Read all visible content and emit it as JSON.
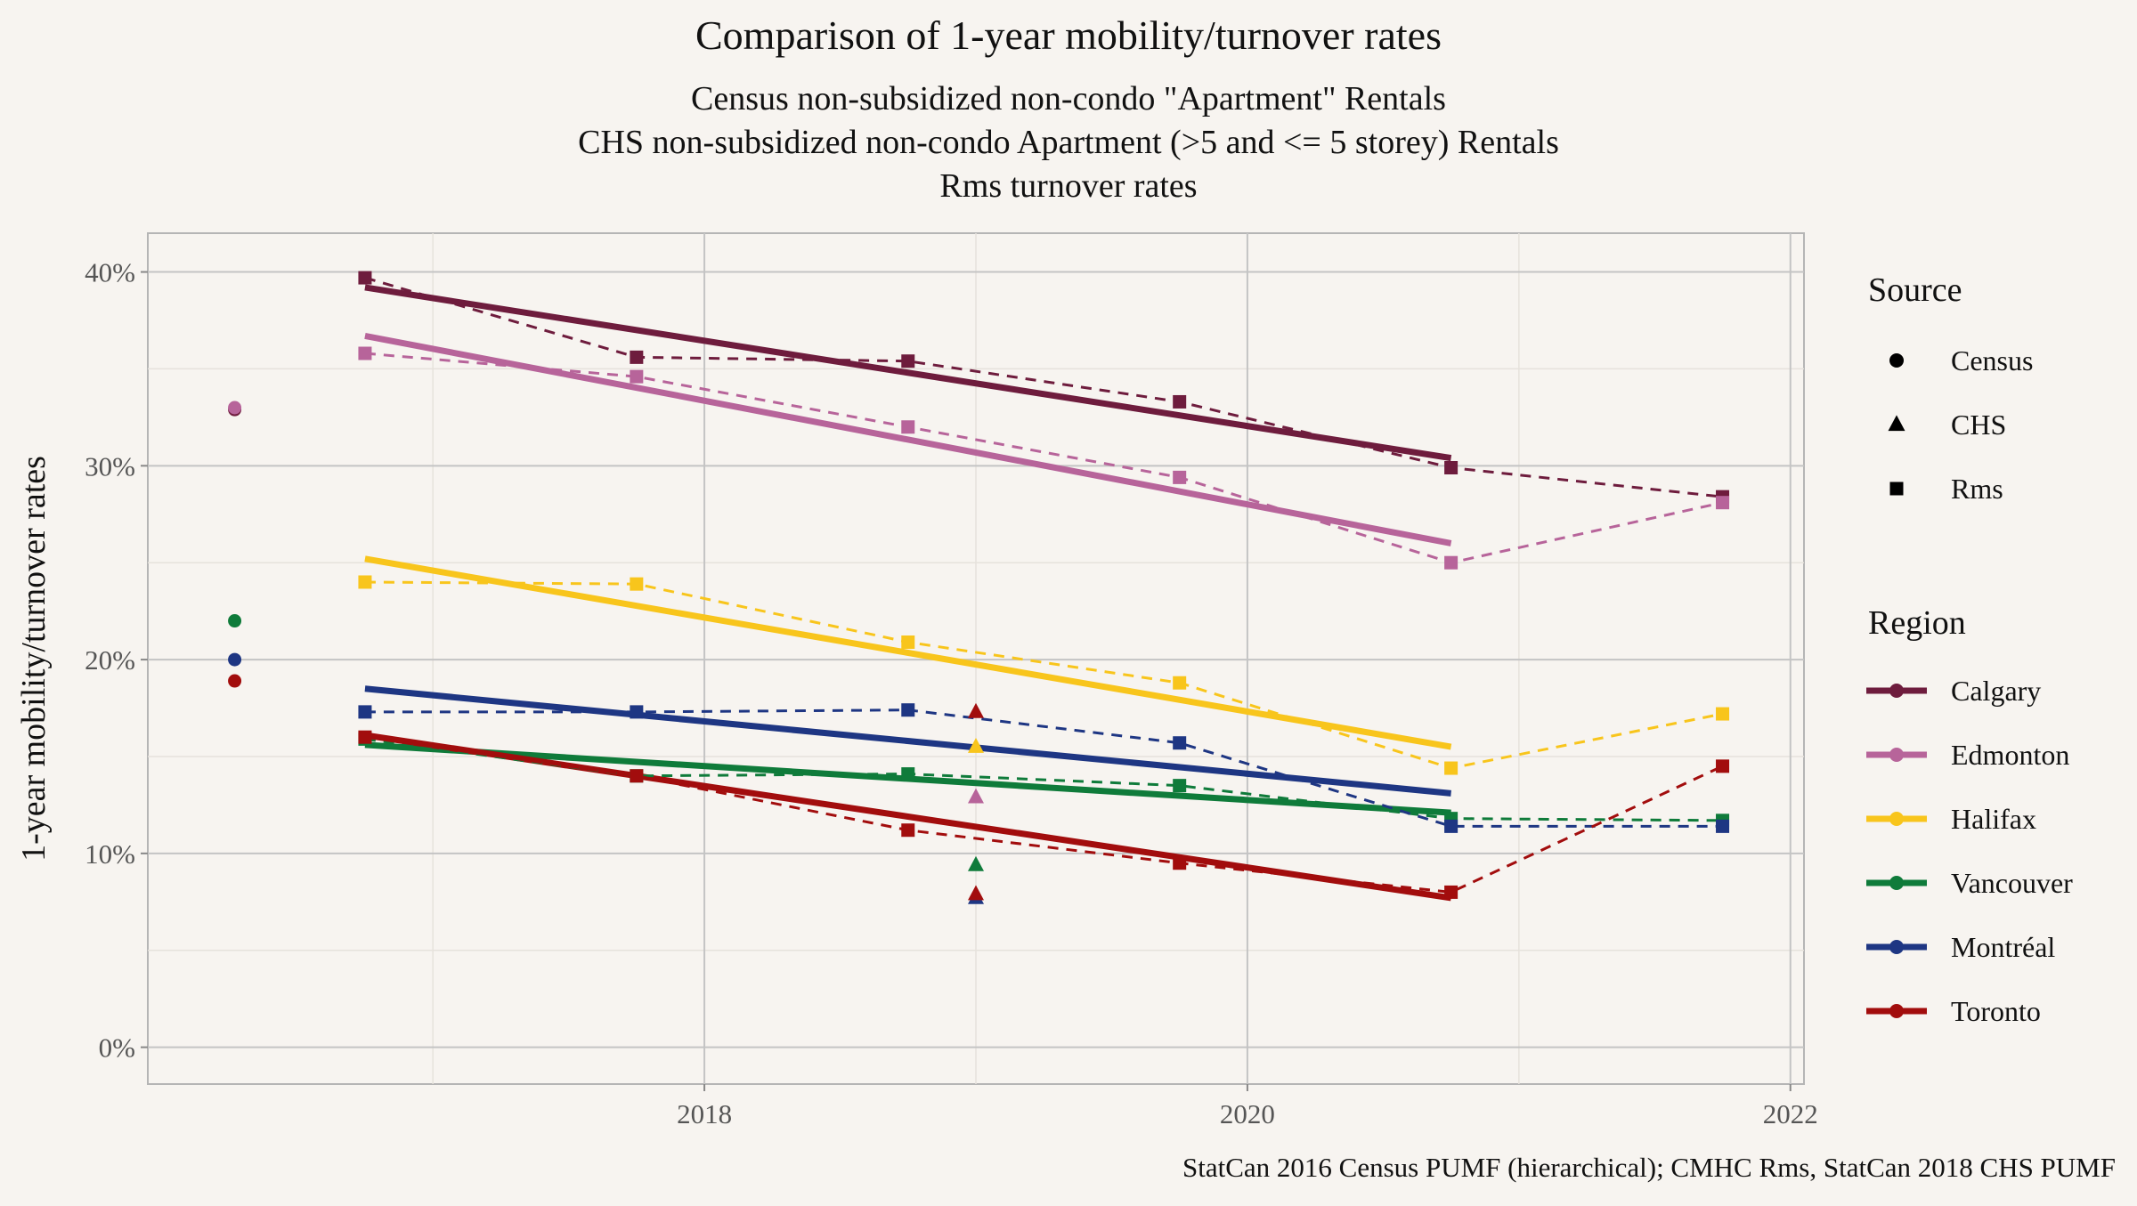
{
  "chart_data": {
    "type": "line",
    "title": "Comparison of 1-year mobility/turnover rates",
    "subtitle_lines": [
      "Census non-subsidized non-condo \"Apartment\" Rentals",
      "CHS non-subsidized non-condo Apartment (>5 and <= 5 storey) Rentals",
      "Rms turnover rates"
    ],
    "ylabel": "1-year mobility/turnover rates",
    "caption": "StatCan 2016 Census PUMF (hierarchical); CMHC Rms, StatCan 2018 CHS PUMF",
    "xlim": [
      2015.95,
      2022.05
    ],
    "ylim": [
      -0.019,
      0.42
    ],
    "x_ticks": [
      2018,
      2020,
      2022
    ],
    "x_tick_labels": [
      "2018",
      "2020",
      "2022"
    ],
    "y_ticks": [
      0,
      0.1,
      0.2,
      0.3,
      0.4
    ],
    "y_tick_labels": [
      "0%",
      "10%",
      "20%",
      "30%",
      "40%"
    ],
    "grid": true,
    "legend_position": "right",
    "legend_source_title": "Source",
    "legend_source": [
      {
        "label": "Census",
        "shape": "circle"
      },
      {
        "label": "CHS",
        "shape": "triangle"
      },
      {
        "label": "Rms",
        "shape": "square"
      }
    ],
    "legend_region_title": "Region",
    "series": [
      {
        "name": "Calgary",
        "color": "#6e1c3d",
        "census": [
          [
            2016.27,
            0.329
          ]
        ],
        "chs": [],
        "rms": [
          [
            2016.75,
            0.397
          ],
          [
            2017.75,
            0.356
          ],
          [
            2018.75,
            0.354
          ],
          [
            2019.75,
            0.333
          ],
          [
            2020.75,
            0.299
          ],
          [
            2021.75,
            0.284
          ]
        ],
        "trend": [
          [
            2016.75,
            0.392
          ],
          [
            2020.75,
            0.304
          ]
        ]
      },
      {
        "name": "Edmonton",
        "color": "#b7649a",
        "census": [
          [
            2016.27,
            0.33
          ]
        ],
        "chs": [
          [
            2019.0,
            0.129
          ]
        ],
        "rms": [
          [
            2016.75,
            0.358
          ],
          [
            2017.75,
            0.346
          ],
          [
            2018.75,
            0.32
          ],
          [
            2019.75,
            0.294
          ],
          [
            2020.75,
            0.25
          ],
          [
            2021.75,
            0.281
          ]
        ],
        "trend": [
          [
            2016.75,
            0.367
          ],
          [
            2020.75,
            0.26
          ]
        ]
      },
      {
        "name": "Halifax",
        "color": "#f8c51c",
        "census": [],
        "chs": [
          [
            2019.0,
            0.155
          ]
        ],
        "rms": [
          [
            2016.75,
            0.24
          ],
          [
            2017.75,
            0.239
          ],
          [
            2018.75,
            0.209
          ],
          [
            2019.75,
            0.188
          ],
          [
            2020.75,
            0.144
          ],
          [
            2021.75,
            0.172
          ]
        ],
        "trend": [
          [
            2016.75,
            0.252
          ],
          [
            2020.75,
            0.155
          ]
        ]
      },
      {
        "name": "Vancouver",
        "color": "#0f7b3a",
        "census": [
          [
            2016.27,
            0.22
          ]
        ],
        "chs": [
          [
            2019.0,
            0.094
          ]
        ],
        "rms": [
          [
            2016.75,
            0.159
          ],
          [
            2017.75,
            0.14
          ],
          [
            2018.75,
            0.141
          ],
          [
            2019.75,
            0.135
          ],
          [
            2020.75,
            0.118
          ],
          [
            2021.75,
            0.117
          ]
        ],
        "trend": [
          [
            2016.75,
            0.156
          ],
          [
            2020.75,
            0.121
          ]
        ]
      },
      {
        "name": "Montréal",
        "color": "#1e3683",
        "census": [
          [
            2016.27,
            0.2
          ]
        ],
        "chs": [
          [
            2019.0,
            0.077
          ]
        ],
        "rms": [
          [
            2016.75,
            0.173
          ],
          [
            2017.75,
            0.173
          ],
          [
            2018.75,
            0.174
          ],
          [
            2019.75,
            0.157
          ],
          [
            2020.75,
            0.114
          ],
          [
            2021.75,
            0.114
          ]
        ],
        "trend": [
          [
            2016.75,
            0.185
          ],
          [
            2020.75,
            0.131
          ]
        ]
      },
      {
        "name": "Toronto",
        "color": "#a20d0d",
        "census": [
          [
            2016.27,
            0.189
          ]
        ],
        "chs": [
          [
            2019.0,
            0.173
          ],
          [
            2019.0,
            0.079
          ]
        ],
        "rms": [
          [
            2016.75,
            0.16
          ],
          [
            2017.75,
            0.14
          ],
          [
            2018.75,
            0.112
          ],
          [
            2019.75,
            0.095
          ],
          [
            2020.75,
            0.08
          ],
          [
            2021.75,
            0.145
          ]
        ],
        "trend": [
          [
            2016.75,
            0.161
          ],
          [
            2020.75,
            0.077
          ]
        ]
      }
    ]
  }
}
